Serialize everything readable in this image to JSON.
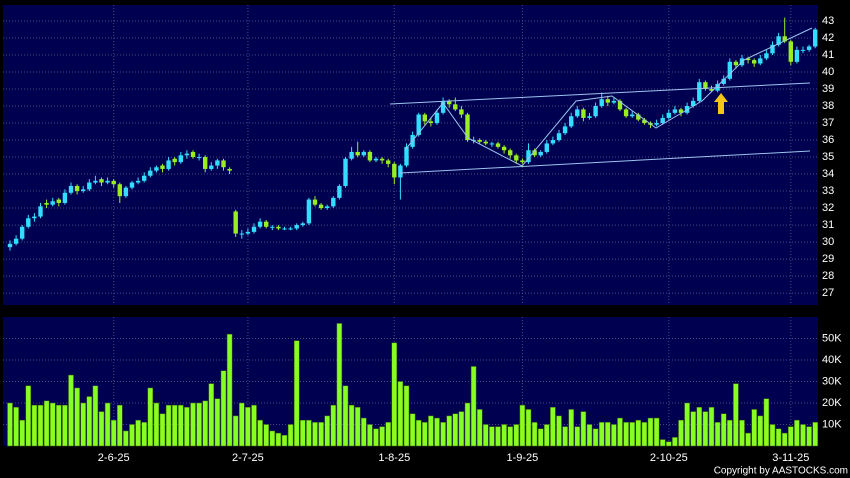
{
  "chart_data": {
    "type": "candlestick",
    "categories": [
      null,
      null,
      null,
      null,
      null,
      null,
      null,
      null,
      null,
      null,
      null,
      null,
      null,
      null,
      null,
      null,
      null,
      "2-6-25",
      null,
      null,
      null,
      null,
      null,
      null,
      null,
      null,
      null,
      null,
      null,
      null,
      null,
      null,
      null,
      null,
      null,
      null,
      null,
      null,
      null,
      "2-7-25",
      null,
      null,
      null,
      null,
      null,
      null,
      null,
      null,
      null,
      null,
      null,
      null,
      null,
      null,
      null,
      null,
      null,
      null,
      null,
      null,
      null,
      null,
      null,
      "1-8-25",
      null,
      null,
      null,
      null,
      null,
      null,
      null,
      null,
      null,
      null,
      null,
      null,
      null,
      null,
      null,
      null,
      null,
      null,
      null,
      null,
      "1-9-25",
      null,
      null,
      null,
      null,
      null,
      null,
      null,
      null,
      null,
      null,
      null,
      null,
      null,
      null,
      null,
      null,
      null,
      null,
      null,
      null,
      null,
      null,
      null,
      "2-10-25",
      null,
      null,
      null,
      null,
      null,
      null,
      null,
      null,
      null,
      null,
      null,
      null,
      null,
      null,
      null,
      null,
      null,
      null,
      null,
      "3-11-25",
      null,
      null,
      null,
      null
    ],
    "ohlc": [
      [
        29.7,
        30.1,
        29.5,
        29.9
      ],
      [
        29.9,
        30.4,
        29.8,
        30.2
      ],
      [
        30.2,
        31.0,
        30.1,
        30.9
      ],
      [
        30.9,
        31.6,
        30.8,
        31.4
      ],
      [
        31.4,
        31.7,
        31.2,
        31.5
      ],
      [
        31.5,
        32.3,
        31.4,
        32.1
      ],
      [
        32.3,
        32.5,
        32.0,
        32.2
      ],
      [
        32.2,
        32.6,
        32.1,
        32.4
      ],
      [
        32.5,
        32.6,
        32.1,
        32.3
      ],
      [
        32.3,
        33.1,
        32.2,
        32.9
      ],
      [
        32.9,
        33.5,
        32.8,
        33.3
      ],
      [
        33.3,
        33.4,
        32.8,
        33.0
      ],
      [
        33.0,
        33.3,
        32.9,
        33.1
      ],
      [
        33.1,
        33.7,
        33.0,
        33.5
      ],
      [
        33.5,
        33.9,
        33.4,
        33.6
      ],
      [
        33.7,
        33.8,
        33.3,
        33.5
      ],
      [
        33.5,
        33.8,
        33.4,
        33.6
      ],
      [
        33.6,
        33.7,
        33.2,
        33.4
      ],
      [
        33.4,
        33.5,
        32.3,
        32.7
      ],
      [
        32.7,
        33.3,
        32.6,
        33.2
      ],
      [
        33.2,
        33.6,
        33.1,
        33.5
      ],
      [
        33.5,
        33.8,
        33.4,
        33.6
      ],
      [
        33.6,
        34.1,
        33.5,
        33.9
      ],
      [
        33.9,
        34.4,
        33.8,
        34.2
      ],
      [
        34.2,
        34.5,
        34.1,
        34.4
      ],
      [
        34.5,
        34.6,
        34.1,
        34.3
      ],
      [
        34.3,
        35.0,
        34.2,
        34.8
      ],
      [
        34.9,
        35.0,
        34.5,
        34.7
      ],
      [
        34.7,
        35.3,
        34.6,
        35.1
      ],
      [
        35.1,
        35.4,
        34.9,
        35.2
      ],
      [
        35.3,
        35.4,
        34.9,
        35.0
      ],
      [
        35.0,
        35.2,
        34.8,
        35.0
      ],
      [
        35.0,
        35.1,
        34.1,
        34.3
      ],
      [
        34.3,
        34.7,
        34.2,
        34.5
      ],
      [
        34.5,
        34.9,
        34.3,
        34.8
      ],
      [
        34.8,
        34.9,
        34.2,
        34.4
      ],
      [
        34.3,
        34.4,
        34.0,
        34.2
      ],
      [
        31.8,
        31.9,
        30.3,
        30.5
      ],
      [
        30.5,
        30.7,
        30.2,
        30.5
      ],
      [
        30.5,
        30.8,
        30.4,
        30.6
      ],
      [
        30.6,
        31.1,
        30.5,
        30.9
      ],
      [
        30.9,
        31.4,
        30.8,
        31.2
      ],
      [
        31.2,
        31.3,
        30.8,
        30.9
      ],
      [
        30.9,
        31.0,
        30.7,
        30.9
      ],
      [
        30.9,
        31.0,
        30.7,
        30.8
      ],
      [
        30.8,
        30.9,
        30.7,
        30.8
      ],
      [
        30.8,
        30.9,
        30.7,
        30.8
      ],
      [
        30.8,
        31.1,
        30.7,
        31.0
      ],
      [
        31.0,
        31.2,
        30.9,
        31.1
      ],
      [
        31.1,
        32.6,
        31.0,
        32.5
      ],
      [
        32.5,
        32.7,
        32.1,
        32.2
      ],
      [
        32.2,
        32.3,
        31.9,
        32.0
      ],
      [
        32.0,
        32.2,
        31.9,
        32.1
      ],
      [
        32.1,
        32.7,
        32.0,
        32.6
      ],
      [
        32.6,
        33.4,
        32.5,
        33.3
      ],
      [
        33.3,
        35.0,
        33.2,
        34.9
      ],
      [
        34.9,
        35.6,
        34.8,
        35.3
      ],
      [
        35.3,
        35.9,
        35.0,
        35.1
      ],
      [
        35.1,
        35.4,
        35.0,
        35.3
      ],
      [
        35.3,
        35.4,
        34.7,
        34.8
      ],
      [
        34.8,
        35.0,
        34.7,
        34.9
      ],
      [
        34.9,
        35.0,
        34.6,
        34.8
      ],
      [
        34.8,
        34.9,
        34.4,
        34.6
      ],
      [
        34.6,
        34.7,
        33.4,
        33.8
      ],
      [
        33.8,
        34.6,
        32.5,
        34.5
      ],
      [
        34.5,
        35.8,
        34.4,
        35.6
      ],
      [
        35.6,
        36.5,
        35.5,
        36.3
      ],
      [
        36.3,
        37.6,
        36.2,
        37.5
      ],
      [
        37.5,
        37.6,
        36.9,
        37.1
      ],
      [
        37.1,
        37.3,
        36.8,
        37.0
      ],
      [
        37.0,
        37.8,
        36.9,
        37.6
      ],
      [
        37.6,
        38.5,
        37.5,
        38.3
      ],
      [
        38.3,
        38.4,
        37.9,
        38.1
      ],
      [
        38.1,
        38.5,
        37.7,
        37.8
      ],
      [
        37.8,
        38.0,
        37.3,
        37.5
      ],
      [
        37.5,
        37.6,
        35.9,
        36.0
      ],
      [
        36.0,
        36.2,
        35.8,
        36.0
      ],
      [
        36.0,
        36.1,
        35.8,
        35.9
      ],
      [
        35.9,
        36.0,
        35.7,
        35.8
      ],
      [
        35.8,
        35.9,
        35.6,
        35.8
      ],
      [
        35.8,
        35.9,
        35.5,
        35.6
      ],
      [
        35.6,
        35.7,
        35.2,
        35.4
      ],
      [
        35.4,
        35.5,
        34.9,
        35.1
      ],
      [
        35.1,
        35.2,
        34.6,
        34.8
      ],
      [
        34.8,
        34.9,
        34.6,
        34.7
      ],
      [
        34.7,
        35.8,
        34.6,
        35.4
      ],
      [
        35.4,
        35.5,
        35.0,
        35.1
      ],
      [
        35.1,
        35.4,
        35.0,
        35.3
      ],
      [
        35.3,
        36.0,
        35.2,
        35.8
      ],
      [
        35.8,
        36.2,
        35.7,
        36.0
      ],
      [
        36.0,
        36.6,
        35.9,
        36.4
      ],
      [
        36.4,
        37.0,
        36.3,
        36.8
      ],
      [
        36.8,
        37.6,
        36.7,
        37.4
      ],
      [
        37.4,
        38.0,
        37.3,
        37.8
      ],
      [
        37.8,
        37.9,
        37.1,
        37.3
      ],
      [
        37.3,
        37.6,
        37.2,
        37.4
      ],
      [
        37.4,
        38.2,
        37.3,
        38.0
      ],
      [
        38.0,
        38.8,
        37.9,
        38.4
      ],
      [
        38.4,
        38.6,
        38.0,
        38.2
      ],
      [
        38.2,
        38.5,
        38.1,
        38.3
      ],
      [
        38.3,
        38.4,
        37.7,
        37.8
      ],
      [
        37.8,
        37.9,
        37.3,
        37.4
      ],
      [
        37.4,
        37.7,
        37.3,
        37.5
      ],
      [
        37.5,
        37.6,
        37.1,
        37.2
      ],
      [
        37.2,
        37.3,
        36.9,
        37.0
      ],
      [
        37.0,
        37.1,
        36.7,
        36.9
      ],
      [
        36.9,
        37.2,
        36.8,
        37.0
      ],
      [
        37.0,
        37.5,
        36.9,
        37.3
      ],
      [
        37.3,
        37.8,
        37.2,
        37.6
      ],
      [
        37.6,
        38.0,
        37.5,
        37.8
      ],
      [
        37.8,
        37.9,
        37.4,
        37.6
      ],
      [
        37.6,
        38.2,
        37.5,
        38.0
      ],
      [
        38.0,
        38.5,
        37.9,
        38.3
      ],
      [
        38.3,
        39.6,
        38.2,
        39.4
      ],
      [
        39.4,
        39.5,
        38.9,
        39.0
      ],
      [
        39.0,
        39.2,
        38.8,
        38.9
      ],
      [
        38.9,
        39.5,
        38.8,
        39.3
      ],
      [
        39.3,
        39.8,
        39.2,
        39.6
      ],
      [
        39.6,
        40.8,
        39.5,
        40.6
      ],
      [
        40.6,
        40.7,
        40.2,
        40.4
      ],
      [
        40.4,
        41.0,
        40.3,
        40.8
      ],
      [
        40.8,
        40.9,
        40.5,
        40.7
      ],
      [
        40.7,
        40.8,
        40.3,
        40.5
      ],
      [
        40.5,
        41.0,
        40.4,
        40.8
      ],
      [
        40.8,
        41.3,
        40.7,
        41.1
      ],
      [
        41.1,
        41.8,
        41.0,
        41.6
      ],
      [
        41.6,
        42.3,
        41.5,
        42.1
      ],
      [
        42.1,
        43.2,
        41.7,
        41.8
      ],
      [
        41.8,
        41.9,
        40.4,
        40.6
      ],
      [
        40.6,
        41.5,
        40.5,
        41.3
      ],
      [
        41.3,
        41.5,
        41.1,
        41.3
      ],
      [
        41.3,
        41.6,
        41.2,
        41.5
      ],
      [
        41.5,
        42.6,
        41.4,
        42.5
      ]
    ],
    "up_color": "#33ddff",
    "down_color": "#99ee22",
    "ylim": [
      26.3,
      43.94
    ],
    "yticks": [
      27,
      28,
      29,
      30,
      31,
      32,
      33,
      34,
      35,
      36,
      37,
      38,
      39,
      40,
      41,
      42,
      43
    ],
    "grid": true,
    "volume": {
      "color": "#88ff22",
      "values": [
        20000,
        18000,
        12000,
        28000,
        19000,
        19000,
        21000,
        20000,
        19000,
        19000,
        33000,
        27000,
        20000,
        23000,
        28000,
        16000,
        20000,
        12000,
        19000,
        7000,
        10000,
        12000,
        11000,
        27000,
        20000,
        15000,
        19000,
        19000,
        19000,
        18000,
        20000,
        20000,
        21000,
        29000,
        22000,
        35000,
        52000,
        14000,
        20000,
        18000,
        19000,
        12000,
        10000,
        7000,
        6000,
        5000,
        10000,
        49000,
        12000,
        12000,
        11000,
        11000,
        14000,
        19000,
        57000,
        28000,
        19000,
        18000,
        13000,
        10000,
        8000,
        9000,
        11000,
        48000,
        30000,
        28000,
        15000,
        12000,
        11000,
        14000,
        13000,
        11000,
        14000,
        15000,
        16000,
        20000,
        37000,
        17000,
        10000,
        9000,
        9000,
        10000,
        9000,
        10000,
        19000,
        17000,
        11000,
        8000,
        10000,
        18000,
        14000,
        9000,
        17000,
        9000,
        16000,
        10000,
        8000,
        11000,
        11000,
        10000,
        13000,
        11000,
        11000,
        12000,
        11000,
        13000,
        13000,
        3000,
        2000,
        4000,
        12000,
        20000,
        16000,
        18000,
        16000,
        18000,
        11000,
        15000,
        12000,
        29000,
        12000,
        6000,
        17000,
        14000,
        22000,
        10000,
        8000,
        6000,
        9000,
        12000,
        10000,
        9000,
        11000
      ],
      "ylim": [
        0,
        60000
      ],
      "yticks": [
        {
          "value": 10000,
          "label": "10K"
        },
        {
          "value": 20000,
          "label": "20K"
        },
        {
          "value": 30000,
          "label": "30K"
        },
        {
          "value": 40000,
          "label": "40K"
        },
        {
          "value": 50000,
          "label": "50K"
        }
      ]
    },
    "copyright": "Copyright by AASTOCKS.com"
  }
}
